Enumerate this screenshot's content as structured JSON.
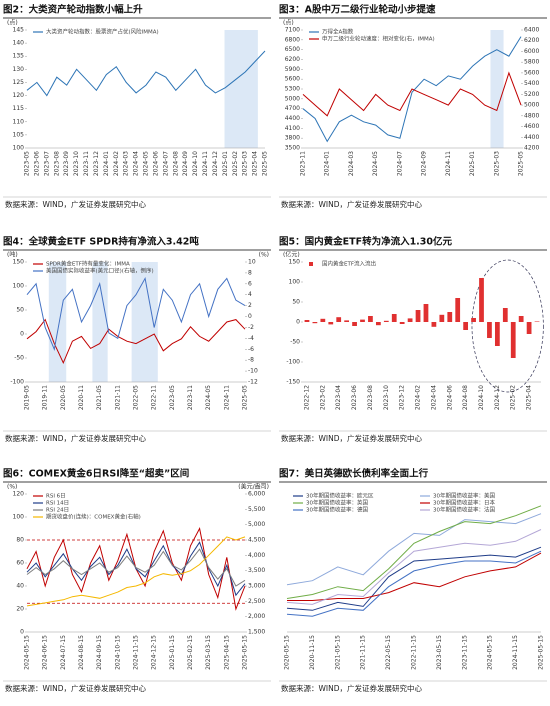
{
  "chart_data": [
    {
      "type": "line",
      "title": "图2：大类资产轮动指数小幅上升",
      "source": "数据来源：WIND，广发证券发展研究中心",
      "y_label": "(点)",
      "categories": [
        "2023-05",
        "2023-06",
        "2023-07",
        "2023-08",
        "2023-09",
        "2023-10",
        "2023-11",
        "2023-12",
        "2024-01",
        "2024-02",
        "2024-03",
        "2024-04",
        "2024-05",
        "2024-06",
        "2024-07",
        "2024-08",
        "2024-09",
        "2024-10",
        "2024-11",
        "2024-12",
        "2025-01",
        "2025-02",
        "2025-03",
        "2025-04",
        "2025-05"
      ],
      "series": [
        {
          "name": "大类资产轮动指数：股票资产占优(风险IMMA)",
          "color": "#2e75b6",
          "values": [
            122,
            125,
            120,
            127,
            124,
            130,
            126,
            122,
            128,
            131,
            125,
            121,
            124,
            129,
            127,
            122,
            126,
            130,
            124,
            121,
            123,
            126,
            129,
            133,
            137
          ]
        }
      ],
      "ylim": [
        100,
        145
      ],
      "yticks": [
        100,
        105,
        110,
        115,
        120,
        125,
        130,
        135,
        140,
        145
      ]
    },
    {
      "type": "line",
      "title": "图3：A股中万二级行业轮动小步提速",
      "source": "数据来源：WIND，广发证券发展研究中心",
      "y_label": "(点)",
      "categories": [
        "2023-11",
        null,
        "2024-01",
        null,
        "2024-03",
        null,
        "2024-05",
        null,
        "2024-07",
        null,
        "2024-09",
        null,
        "2024-11",
        null,
        "2025-01",
        null,
        "2025-03",
        null,
        "2025-05"
      ],
      "series": [
        {
          "name": "万得全A指数",
          "color": "#2e75b6",
          "values": [
            4700,
            4400,
            3700,
            4300,
            4500,
            4300,
            4200,
            3900,
            3800,
            5200,
            5600,
            5400,
            5700,
            5600,
            6000,
            6300,
            6500,
            6300,
            6900
          ]
        },
        {
          "name": "申万二级行业轮动速度：相对变化(右，IMMA)",
          "color": "#c00000",
          "axis": "y2",
          "values": [
            5200,
            5000,
            4800,
            5300,
            5100,
            4900,
            5200,
            5000,
            4900,
            5300,
            5200,
            5100,
            5000,
            5300,
            5200,
            5000,
            4900,
            5600,
            5000
          ]
        }
      ],
      "ylim": [
        3500,
        7100
      ],
      "yticks": [
        3500,
        3800,
        4100,
        4400,
        4700,
        5000,
        5300,
        5600,
        5900,
        6200,
        6500,
        6800,
        7100
      ],
      "y2lim": [
        4200,
        6400
      ],
      "y2ticks": [
        4200,
        4400,
        4600,
        4800,
        5000,
        5200,
        5400,
        5600,
        5800,
        6000,
        6200,
        6400
      ]
    },
    {
      "type": "line",
      "title": "图4：全球黄金ETF SPDR持有净流入3.42吨",
      "source": "数据来源：WIND，广发证券发展研究中心",
      "y_label": "(吨)",
      "y2_label": "(%)",
      "categories": [
        "2019-05",
        null,
        "2019-11",
        null,
        "2020-05",
        null,
        "2020-11",
        null,
        "2021-05",
        null,
        "2021-11",
        null,
        "2022-05",
        null,
        "2022-11",
        null,
        "2023-05",
        null,
        "2023-11",
        null,
        "2024-05",
        null,
        "2024-11",
        null,
        "2025-05"
      ],
      "series": [
        {
          "name": "SPDR黄金ETF持有量变化：IMMA",
          "color": "#c00000",
          "values": [
            -10,
            5,
            30,
            -20,
            -60,
            -15,
            -5,
            -30,
            -20,
            10,
            -5,
            -15,
            -20,
            -10,
            0,
            -35,
            -20,
            -10,
            15,
            -5,
            -15,
            5,
            25,
            30,
            10
          ]
        },
        {
          "name": "美国国债实际收益率(美元口径)(右轴，倒序)",
          "color": "#4472c4",
          "axis": "y2",
          "values": [
            4,
            6,
            -2,
            -6,
            3,
            5,
            -1,
            2,
            6,
            -3,
            -4,
            2,
            4,
            7,
            -2,
            5,
            3,
            -1,
            4,
            6,
            0,
            5,
            7,
            3,
            2
          ]
        }
      ],
      "ylim": [
        -100,
        150
      ],
      "yticks": [
        -100,
        -50,
        0,
        50,
        100,
        150
      ],
      "y2lim": [
        -12,
        10
      ],
      "y2ticks": [
        -12,
        -10,
        -8,
        -6,
        -4,
        -2,
        0,
        2,
        4,
        6,
        8,
        10
      ]
    },
    {
      "type": "bar",
      "title": "图5：国内黄金ETF转为净流入1.30亿元",
      "source": "数据来源：WIND，广发证券发展研究中心",
      "y_label": "(亿元)",
      "categories": [
        "2022-12",
        null,
        "2023-02",
        null,
        "2023-04",
        null,
        "2023-06",
        null,
        "2023-08",
        null,
        "2023-10",
        null,
        "2023-12",
        null,
        "2024-02",
        null,
        "2024-04",
        null,
        "2024-06",
        null,
        "2024-08",
        null,
        "2024-10",
        null,
        "2024-12",
        null,
        "2025-02",
        null,
        "2025-04",
        null
      ],
      "series": [
        {
          "name": "国内黄金ETF流入流出",
          "color": "#e03030",
          "values": [
            5,
            -3,
            8,
            -6,
            12,
            4,
            -10,
            6,
            15,
            -8,
            3,
            20,
            -5,
            9,
            30,
            45,
            -12,
            18,
            25,
            60,
            -20,
            10,
            110,
            -40,
            -60,
            35,
            -90,
            15,
            -30,
            1.3
          ]
        }
      ],
      "ylim": [
        -150,
        150
      ],
      "yticks": [
        -150,
        -100,
        -50,
        0,
        50,
        100,
        150
      ]
    },
    {
      "type": "line",
      "title": "图6：COMEX黄金6日RSI降至“超卖”区间",
      "source": "数据来源：WIND，广发证券发展研究中心",
      "y_label": "(%)",
      "y2_label": "(美元/盎司)",
      "categories": [
        "2024-05-15",
        null,
        "2024-06-15",
        null,
        "2024-07-15",
        null,
        "2024-08-15",
        null,
        "2024-09-15",
        null,
        "2024-10-15",
        null,
        "2024-11-15",
        null,
        "2024-12-15",
        null,
        "2025-01-15",
        null,
        "2025-02-15",
        null,
        "2025-03-15",
        null,
        "2025-04-15",
        null,
        "2025-05-15"
      ],
      "series": [
        {
          "name": "RSI 6日",
          "color": "#c00000",
          "values": [
            55,
            70,
            40,
            65,
            80,
            50,
            35,
            60,
            75,
            45,
            62,
            85,
            55,
            40,
            70,
            88,
            60,
            45,
            75,
            90,
            50,
            30,
            65,
            20,
            40
          ]
        },
        {
          "name": "RSI 14日",
          "color": "#1f3c88",
          "values": [
            52,
            60,
            48,
            58,
            68,
            55,
            45,
            57,
            65,
            50,
            58,
            72,
            55,
            48,
            62,
            75,
            58,
            50,
            66,
            78,
            55,
            40,
            58,
            32,
            42
          ]
        },
        {
          "name": "RSI 24日",
          "color": "#7f7f7f",
          "values": [
            50,
            56,
            50,
            55,
            62,
            55,
            50,
            55,
            60,
            52,
            56,
            66,
            56,
            52,
            58,
            70,
            58,
            54,
            62,
            72,
            56,
            46,
            55,
            40,
            45
          ]
        },
        {
          "name": "期货收盘价(连续)：COMEX黄金(右轴)",
          "color": "#f5b800",
          "axis": "y2",
          "values": [
            2350,
            2400,
            2450,
            2500,
            2550,
            2650,
            2700,
            2650,
            2600,
            2700,
            2800,
            2950,
            3000,
            3100,
            3300,
            3400,
            3350,
            3400,
            3500,
            3700,
            4000,
            4300,
            4600,
            4500,
            4600
          ]
        }
      ],
      "reference_lines": [
        80,
        25
      ],
      "ylim": [
        0,
        120
      ],
      "yticks": [
        0,
        20,
        40,
        60,
        80,
        100,
        120
      ],
      "y2lim": [
        1500,
        6000
      ],
      "y2ticks": [
        {
          "value": 1500,
          "label": "1,500"
        },
        {
          "value": 2000,
          "label": "2,000"
        },
        {
          "value": 2500,
          "label": "2,500"
        },
        {
          "value": 3000,
          "label": "3,000"
        },
        {
          "value": 3500,
          "label": "3,500"
        },
        {
          "value": 4000,
          "label": "4,000"
        },
        {
          "value": 4500,
          "label": "4,500"
        },
        {
          "value": 5000,
          "label": "5,000"
        },
        {
          "value": 5500,
          "label": "5,500"
        },
        {
          "value": 6000,
          "label": "6,000"
        }
      ]
    },
    {
      "type": "line",
      "title": "图7：美日英德欧长债利率全面上行",
      "source": "数据来源：WIND，广发证券发展研究中心",
      "categories": [
        "2020-05-15",
        "2020-11-15",
        "2021-05-15",
        "2021-11-15",
        "2022-05-15",
        "2022-11-15",
        "2023-05-15",
        "2023-11-15",
        "2024-05-15",
        "2024-11-15",
        "2025-05-15"
      ],
      "series": [
        {
          "name": "30年期国债收益率：欧元区",
          "color": "#1f3c88",
          "values": [
            0.2,
            0.1,
            0.5,
            0.3,
            1.8,
            2.6,
            2.7,
            2.8,
            2.9,
            2.8,
            3.3
          ]
        },
        {
          "name": "30年期国债收益率：美国",
          "color": "#8ea9db",
          "values": [
            1.4,
            1.6,
            2.3,
            1.9,
            3.1,
            4.0,
            3.9,
            4.7,
            4.6,
            4.5,
            5.0
          ]
        },
        {
          "name": "30年期国债收益率：英国",
          "color": "#70ad47",
          "values": [
            0.7,
            0.9,
            1.3,
            1.1,
            2.2,
            3.5,
            4.1,
            4.6,
            4.5,
            4.9,
            5.4
          ]
        },
        {
          "name": "30年期国债收益率：日本",
          "color": "#c00000",
          "values": [
            0.6,
            0.6,
            0.7,
            0.7,
            1.0,
            1.5,
            1.3,
            1.8,
            2.1,
            2.3,
            3.0
          ]
        },
        {
          "name": "30年期国债收益率：德国",
          "color": "#4472c4",
          "values": [
            -0.1,
            -0.2,
            0.2,
            0.1,
            1.3,
            2.1,
            2.4,
            2.6,
            2.6,
            2.5,
            3.1
          ]
        },
        {
          "name": "30年期国债收益率：法国",
          "color": "#b4a7d6",
          "values": [
            0.5,
            0.4,
            0.9,
            0.8,
            2.0,
            3.1,
            3.3,
            3.5,
            3.4,
            3.6,
            4.2
          ]
        }
      ],
      "ylim": [
        -1,
        6
      ]
    }
  ]
}
